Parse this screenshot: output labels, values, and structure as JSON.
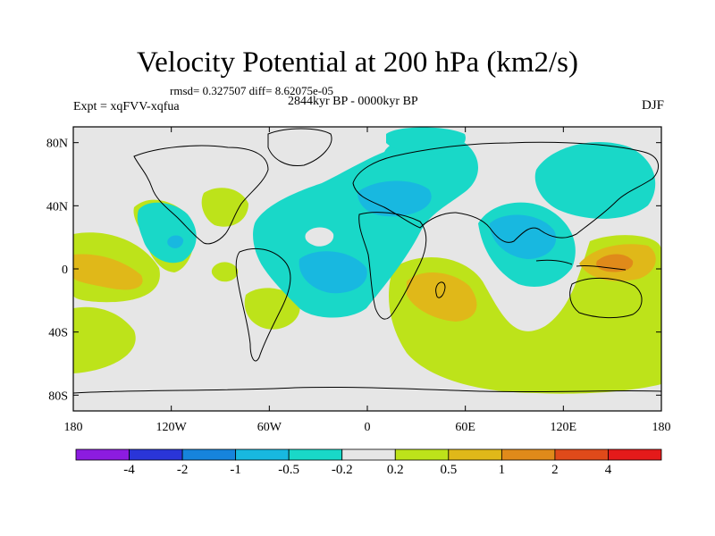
{
  "title": "Velocity Potential at 200 hPa (km2/s)",
  "rmsd_line": "rmsd= 0.327507 diff= 8.62075e-05",
  "period": "2844kyr BP - 0000kyr BP",
  "experiment": "Expt = xqFVV-xqfua",
  "season": "DJF",
  "map": {
    "projection": "cylindrical equidistant",
    "lon_range": [
      -180,
      180
    ],
    "lat_range": [
      -90,
      90
    ],
    "lon_ticks": [
      "180",
      "120W",
      "60W",
      "0",
      "60E",
      "120E",
      "180"
    ],
    "lat_ticks": [
      "80N",
      "40N",
      "0",
      "40S",
      "80S"
    ]
  },
  "colorbar": {
    "labels": [
      "-4",
      "-2",
      "-1",
      "-0.5",
      "-0.2",
      "0.2",
      "0.5",
      "1",
      "2",
      "4"
    ],
    "colors": [
      "#8c1ce0",
      "#2a35d8",
      "#1684dc",
      "#18b8e0",
      "#19d8c8",
      "#e6e6e6",
      "#bde31a",
      "#e0b819",
      "#e08a1a",
      "#e04a1a",
      "#e41a1a"
    ]
  },
  "colors": {
    "neutral": "#e6e6e6",
    "neg_weak": "#19d8c8",
    "neg_mod": "#18b8e0",
    "neg_strong": "#1684dc",
    "pos_weak": "#bde31a",
    "pos_mod": "#e0b819",
    "pos_strong": "#e08a1a",
    "pos_max": "#e04a1a"
  }
}
